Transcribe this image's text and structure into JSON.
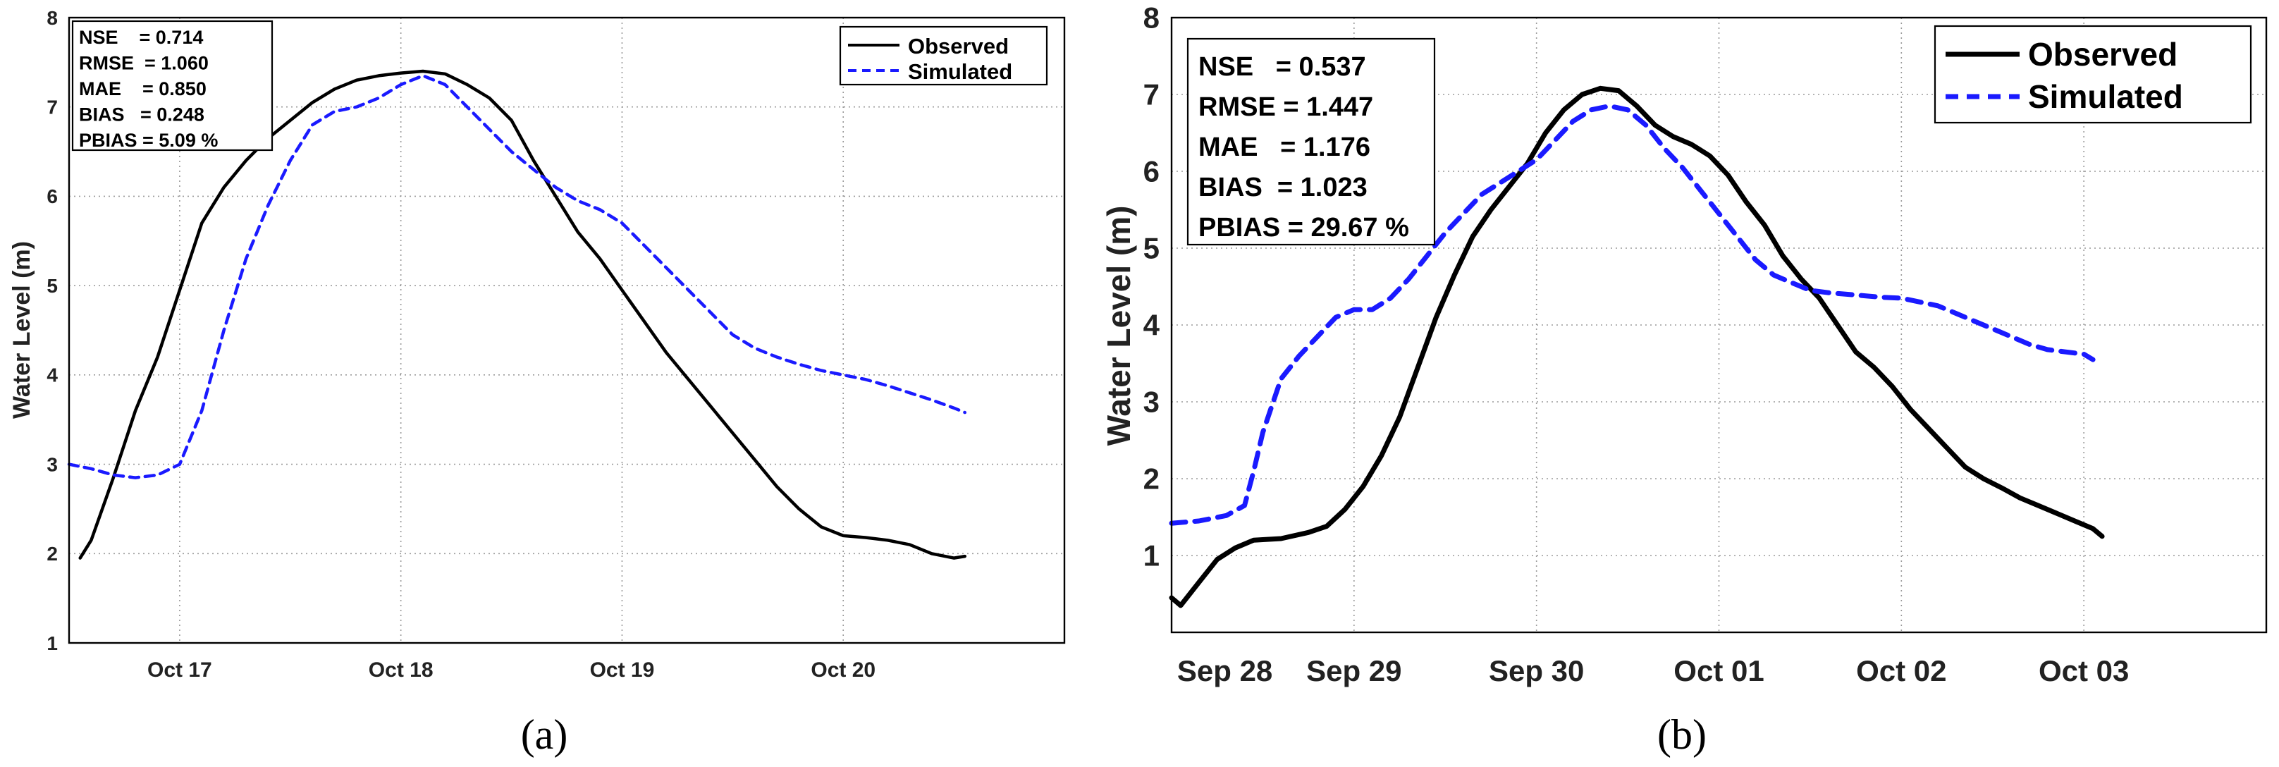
{
  "chart_data": [
    {
      "type": "line",
      "panel": "a",
      "caption": "(a)",
      "ylabel": "Water Level (m)",
      "xlabel": "",
      "ylim": [
        1,
        8
      ],
      "yticks": [
        "1",
        "2",
        "3",
        "4",
        "5",
        "6",
        "7",
        "8"
      ],
      "xlim": [
        0,
        4.5
      ],
      "xticks": [
        {
          "label": "Oct 17",
          "x": 0.5
        },
        {
          "label": "Oct 18",
          "x": 1.5
        },
        {
          "label": "Oct 19",
          "x": 2.5
        },
        {
          "label": "Oct 20",
          "x": 3.5
        }
      ],
      "grid": true,
      "legend_position": "top-right",
      "stats": [
        "NSE    = 0.714",
        "RMSE  = 1.060",
        "MAE    = 0.850",
        "BIAS   = 0.248",
        "PBIAS = 5.09 %"
      ],
      "series": [
        {
          "name": "Observed",
          "color": "#000000",
          "style": "solid",
          "points": [
            [
              0.05,
              1.95
            ],
            [
              0.1,
              2.15
            ],
            [
              0.2,
              2.85
            ],
            [
              0.3,
              3.6
            ],
            [
              0.4,
              4.2
            ],
            [
              0.5,
              4.95
            ],
            [
              0.6,
              5.7
            ],
            [
              0.7,
              6.1
            ],
            [
              0.8,
              6.4
            ],
            [
              0.9,
              6.65
            ],
            [
              1.0,
              6.85
            ],
            [
              1.1,
              7.05
            ],
            [
              1.2,
              7.2
            ],
            [
              1.3,
              7.3
            ],
            [
              1.4,
              7.35
            ],
            [
              1.5,
              7.38
            ],
            [
              1.6,
              7.4
            ],
            [
              1.7,
              7.37
            ],
            [
              1.8,
              7.25
            ],
            [
              1.9,
              7.1
            ],
            [
              2.0,
              6.85
            ],
            [
              2.1,
              6.4
            ],
            [
              2.2,
              6.0
            ],
            [
              2.3,
              5.6
            ],
            [
              2.4,
              5.3
            ],
            [
              2.5,
              4.95
            ],
            [
              2.6,
              4.6
            ],
            [
              2.7,
              4.25
            ],
            [
              2.8,
              3.95
            ],
            [
              2.9,
              3.65
            ],
            [
              3.0,
              3.35
            ],
            [
              3.1,
              3.05
            ],
            [
              3.2,
              2.75
            ],
            [
              3.3,
              2.5
            ],
            [
              3.4,
              2.3
            ],
            [
              3.5,
              2.2
            ],
            [
              3.6,
              2.18
            ],
            [
              3.7,
              2.15
            ],
            [
              3.8,
              2.1
            ],
            [
              3.9,
              2.0
            ],
            [
              4.0,
              1.95
            ],
            [
              4.05,
              1.97
            ]
          ]
        },
        {
          "name": "Simulated",
          "color": "#1a1aff",
          "style": "dashed",
          "points": [
            [
              0.0,
              3.0
            ],
            [
              0.1,
              2.95
            ],
            [
              0.2,
              2.88
            ],
            [
              0.3,
              2.85
            ],
            [
              0.4,
              2.88
            ],
            [
              0.5,
              3.0
            ],
            [
              0.6,
              3.6
            ],
            [
              0.7,
              4.5
            ],
            [
              0.8,
              5.3
            ],
            [
              0.9,
              5.9
            ],
            [
              1.0,
              6.4
            ],
            [
              1.1,
              6.8
            ],
            [
              1.2,
              6.95
            ],
            [
              1.3,
              7.0
            ],
            [
              1.4,
              7.1
            ],
            [
              1.5,
              7.25
            ],
            [
              1.6,
              7.35
            ],
            [
              1.7,
              7.25
            ],
            [
              1.8,
              7.0
            ],
            [
              1.9,
              6.75
            ],
            [
              2.0,
              6.5
            ],
            [
              2.1,
              6.3
            ],
            [
              2.2,
              6.1
            ],
            [
              2.3,
              5.95
            ],
            [
              2.4,
              5.85
            ],
            [
              2.5,
              5.7
            ],
            [
              2.6,
              5.45
            ],
            [
              2.7,
              5.2
            ],
            [
              2.8,
              4.95
            ],
            [
              2.9,
              4.7
            ],
            [
              3.0,
              4.45
            ],
            [
              3.1,
              4.3
            ],
            [
              3.2,
              4.2
            ],
            [
              3.3,
              4.12
            ],
            [
              3.4,
              4.05
            ],
            [
              3.5,
              4.0
            ],
            [
              3.6,
              3.95
            ],
            [
              3.7,
              3.88
            ],
            [
              3.8,
              3.8
            ],
            [
              3.9,
              3.72
            ],
            [
              4.0,
              3.63
            ],
            [
              4.05,
              3.58
            ]
          ]
        }
      ]
    },
    {
      "type": "line",
      "panel": "b",
      "caption": "(b)",
      "ylabel": "Water Level (m)",
      "xlabel": "",
      "ylim": [
        0,
        8
      ],
      "yticks": [
        "1",
        "2",
        "3",
        "4",
        "5",
        "6",
        "7",
        "8"
      ],
      "xlim": [
        0,
        6
      ],
      "xticks": [
        {
          "label": "Sep 28",
          "x": 0
        },
        {
          "label": "Sep 29",
          "x": 1
        },
        {
          "label": "Sep 30",
          "x": 2
        },
        {
          "label": "Oct 01",
          "x": 3
        },
        {
          "label": "Oct 02",
          "x": 4
        },
        {
          "label": "Oct 03",
          "x": 5
        }
      ],
      "grid": true,
      "legend_position": "top-right",
      "stats": [
        "NSE   = 0.537",
        "RMSE = 1.447",
        "MAE   = 1.176",
        "BIAS  = 1.023",
        "PBIAS = 29.67 %"
      ],
      "series": [
        {
          "name": "Observed",
          "color": "#000000",
          "style": "solid",
          "points": [
            [
              0.0,
              0.45
            ],
            [
              0.05,
              0.35
            ],
            [
              0.15,
              0.65
            ],
            [
              0.25,
              0.95
            ],
            [
              0.35,
              1.1
            ],
            [
              0.45,
              1.2
            ],
            [
              0.6,
              1.22
            ],
            [
              0.75,
              1.3
            ],
            [
              0.85,
              1.38
            ],
            [
              0.95,
              1.6
            ],
            [
              1.05,
              1.9
            ],
            [
              1.15,
              2.3
            ],
            [
              1.25,
              2.8
            ],
            [
              1.35,
              3.45
            ],
            [
              1.45,
              4.1
            ],
            [
              1.55,
              4.65
            ],
            [
              1.65,
              5.15
            ],
            [
              1.75,
              5.5
            ],
            [
              1.85,
              5.8
            ],
            [
              1.95,
              6.1
            ],
            [
              2.05,
              6.5
            ],
            [
              2.15,
              6.8
            ],
            [
              2.25,
              7.0
            ],
            [
              2.35,
              7.08
            ],
            [
              2.45,
              7.05
            ],
            [
              2.55,
              6.85
            ],
            [
              2.65,
              6.6
            ],
            [
              2.75,
              6.45
            ],
            [
              2.85,
              6.35
            ],
            [
              2.95,
              6.2
            ],
            [
              3.05,
              5.95
            ],
            [
              3.15,
              5.6
            ],
            [
              3.25,
              5.3
            ],
            [
              3.35,
              4.9
            ],
            [
              3.45,
              4.6
            ],
            [
              3.55,
              4.35
            ],
            [
              3.65,
              4.0
            ],
            [
              3.75,
              3.65
            ],
            [
              3.85,
              3.45
            ],
            [
              3.95,
              3.2
            ],
            [
              4.05,
              2.9
            ],
            [
              4.15,
              2.65
            ],
            [
              4.25,
              2.4
            ],
            [
              4.35,
              2.15
            ],
            [
              4.45,
              2.0
            ],
            [
              4.55,
              1.88
            ],
            [
              4.65,
              1.75
            ],
            [
              4.75,
              1.65
            ],
            [
              4.85,
              1.55
            ],
            [
              4.95,
              1.45
            ],
            [
              5.05,
              1.35
            ],
            [
              5.1,
              1.25
            ]
          ]
        },
        {
          "name": "Simulated",
          "color": "#1a1aff",
          "style": "dashed",
          "points": [
            [
              0.0,
              1.42
            ],
            [
              0.15,
              1.45
            ],
            [
              0.3,
              1.52
            ],
            [
              0.4,
              1.65
            ],
            [
              0.45,
              2.1
            ],
            [
              0.5,
              2.6
            ],
            [
              0.6,
              3.3
            ],
            [
              0.7,
              3.6
            ],
            [
              0.8,
              3.85
            ],
            [
              0.9,
              4.1
            ],
            [
              1.0,
              4.2
            ],
            [
              1.1,
              4.2
            ],
            [
              1.2,
              4.35
            ],
            [
              1.3,
              4.6
            ],
            [
              1.4,
              4.9
            ],
            [
              1.5,
              5.2
            ],
            [
              1.6,
              5.45
            ],
            [
              1.7,
              5.7
            ],
            [
              1.8,
              5.85
            ],
            [
              1.9,
              6.0
            ],
            [
              2.0,
              6.15
            ],
            [
              2.1,
              6.4
            ],
            [
              2.2,
              6.65
            ],
            [
              2.3,
              6.8
            ],
            [
              2.4,
              6.85
            ],
            [
              2.5,
              6.8
            ],
            [
              2.6,
              6.6
            ],
            [
              2.7,
              6.3
            ],
            [
              2.8,
              6.05
            ],
            [
              2.9,
              5.75
            ],
            [
              3.0,
              5.45
            ],
            [
              3.1,
              5.15
            ],
            [
              3.2,
              4.85
            ],
            [
              3.3,
              4.65
            ],
            [
              3.4,
              4.55
            ],
            [
              3.5,
              4.45
            ],
            [
              3.6,
              4.42
            ],
            [
              3.7,
              4.4
            ],
            [
              3.8,
              4.38
            ],
            [
              3.9,
              4.36
            ],
            [
              4.0,
              4.35
            ],
            [
              4.1,
              4.3
            ],
            [
              4.2,
              4.25
            ],
            [
              4.3,
              4.15
            ],
            [
              4.4,
              4.05
            ],
            [
              4.5,
              3.95
            ],
            [
              4.6,
              3.85
            ],
            [
              4.7,
              3.75
            ],
            [
              4.8,
              3.68
            ],
            [
              4.9,
              3.65
            ],
            [
              5.0,
              3.62
            ],
            [
              5.05,
              3.55
            ]
          ]
        }
      ]
    }
  ]
}
